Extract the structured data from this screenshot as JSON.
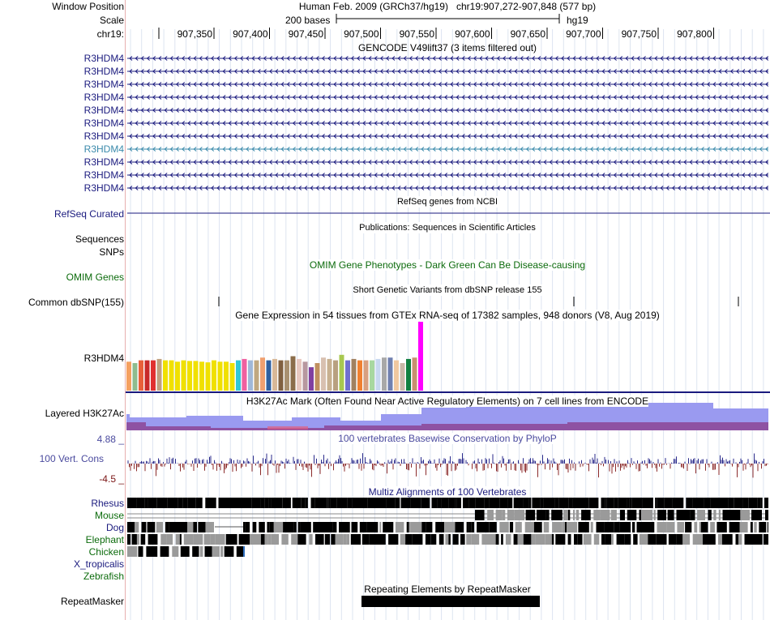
{
  "header": {
    "window_position_label": "Window Position",
    "scale_label": "Scale",
    "chrom_label": "chr19:",
    "assembly_title": "Human Feb. 2009 (GRCh37/hg19)",
    "position": "chr19:907,272-907,848 (577 bp)",
    "scale_text": "200 bases",
    "db": "hg19",
    "ticks": [
      "907,350",
      "907,400",
      "907,450",
      "907,500",
      "907,550",
      "907,600",
      "907,650",
      "907,700",
      "907,750",
      "907,800"
    ]
  },
  "gencode": {
    "title": "GENCODE V49lift37 (3 items filtered out)",
    "items": [
      {
        "name": "R3HDM4",
        "color": "#1a1a7e"
      },
      {
        "name": "R3HDM4",
        "color": "#1a1a7e"
      },
      {
        "name": "R3HDM4",
        "color": "#1a1a7e"
      },
      {
        "name": "R3HDM4",
        "color": "#1a1a7e"
      },
      {
        "name": "R3HDM4",
        "color": "#1a1a7e"
      },
      {
        "name": "R3HDM4",
        "color": "#1a1a7e"
      },
      {
        "name": "R3HDM4",
        "color": "#1a1a7e"
      },
      {
        "name": "R3HDM4",
        "color": "#3a8aab"
      },
      {
        "name": "R3HDM4",
        "color": "#1a1a7e"
      },
      {
        "name": "R3HDM4",
        "color": "#1a1a7e"
      },
      {
        "name": "R3HDM4",
        "color": "#1a1a7e"
      }
    ]
  },
  "refseq": {
    "title": "RefSeq genes from NCBI",
    "label": "RefSeq Curated"
  },
  "publications": {
    "title": "Publications: Sequences in Scientific Articles",
    "label_sequences": "Sequences",
    "label_snps": "SNPs"
  },
  "omim": {
    "title": "OMIM Gene Phenotypes - Dark Green Can Be Disease-causing",
    "label": "OMIM Genes"
  },
  "dbsnp": {
    "title": "Short Genetic Variants from dbSNP release 155",
    "label": "Common dbSNP(155)"
  },
  "gtex": {
    "title": "Gene Expression in 54 tissues from GTEx RNA-seq of 17382 samples, 948 donors (V8, Aug 2019)",
    "label": "R3HDM4",
    "bars": [
      {
        "v": 0.42,
        "c": "#f5a060"
      },
      {
        "v": 0.4,
        "c": "#8fbc8f"
      },
      {
        "v": 0.44,
        "c": "#e85f3a"
      },
      {
        "v": 0.44,
        "c": "#c82a2a"
      },
      {
        "v": 0.44,
        "c": "#e03030"
      },
      {
        "v": 0.46,
        "c": "#c0a080"
      },
      {
        "v": 0.44,
        "c": "#f0e000"
      },
      {
        "v": 0.44,
        "c": "#f0e000"
      },
      {
        "v": 0.42,
        "c": "#f0e000"
      },
      {
        "v": 0.44,
        "c": "#f0e000"
      },
      {
        "v": 0.43,
        "c": "#f0e000"
      },
      {
        "v": 0.43,
        "c": "#f0e000"
      },
      {
        "v": 0.42,
        "c": "#f0e000"
      },
      {
        "v": 0.41,
        "c": "#f0e000"
      },
      {
        "v": 0.44,
        "c": "#f0e000"
      },
      {
        "v": 0.42,
        "c": "#f0e000"
      },
      {
        "v": 0.42,
        "c": "#f0e000"
      },
      {
        "v": 0.4,
        "c": "#f0e000"
      },
      {
        "v": 0.44,
        "c": "#30c8d8"
      },
      {
        "v": 0.46,
        "c": "#f060a0"
      },
      {
        "v": 0.44,
        "c": "#a0b8d8"
      },
      {
        "v": 0.44,
        "c": "#c0a880"
      },
      {
        "v": 0.48,
        "c": "#f0a070"
      },
      {
        "v": 0.44,
        "c": "#3060a0"
      },
      {
        "v": 0.46,
        "c": "#d8b898"
      },
      {
        "v": 0.44,
        "c": "#806040"
      },
      {
        "v": 0.44,
        "c": "#a89070"
      },
      {
        "v": 0.5,
        "c": "#8b6d4a"
      },
      {
        "v": 0.46,
        "c": "#e8c8c0"
      },
      {
        "v": 0.42,
        "c": "#b898a0"
      },
      {
        "v": 0.34,
        "c": "#8040a0"
      },
      {
        "v": 0.4,
        "c": "#c09060"
      },
      {
        "v": 0.48,
        "c": "#d8c0b0"
      },
      {
        "v": 0.46,
        "c": "#c8b090"
      },
      {
        "v": 0.44,
        "c": "#b8a080"
      },
      {
        "v": 0.52,
        "c": "#a8c850"
      },
      {
        "v": 0.44,
        "c": "#7070d0"
      },
      {
        "v": 0.46,
        "c": "#a08060"
      },
      {
        "v": 0.44,
        "c": "#f08030"
      },
      {
        "v": 0.44,
        "c": "#d8a080"
      },
      {
        "v": 0.44,
        "c": "#a8d8a0"
      },
      {
        "v": 0.46,
        "c": "#c8d8f0"
      },
      {
        "v": 0.48,
        "c": "#a8a8a8"
      },
      {
        "v": 0.48,
        "c": "#7080b0"
      },
      {
        "v": 0.44,
        "c": "#f0c8a0"
      },
      {
        "v": 0.4,
        "c": "#c8b8a8"
      },
      {
        "v": 0.46,
        "c": "#108040"
      },
      {
        "v": 0.48,
        "c": "#c89070"
      },
      {
        "v": 1.0,
        "c": "#ff00ff"
      }
    ]
  },
  "h3k27ac": {
    "title": "H3K27Ac Mark (Often Found Near Active Regulatory Elements) on 7 cell lines from ENCODE",
    "label": "Layered H3K27Ac"
  },
  "conservation": {
    "title": "100 vertebrates Basewise Conservation by PhyloP",
    "label": "100 Vert. Cons",
    "max": "4.88 _",
    "min": "-4.5 _"
  },
  "multiz": {
    "title": "Multiz Alignments of 100 Vertebrates",
    "species": [
      {
        "name": "Rhesus",
        "color": "#1a1a7e"
      },
      {
        "name": "Mouse",
        "color": "#0c6b0c"
      },
      {
        "name": "Dog",
        "color": "#1a1a7e"
      },
      {
        "name": "Elephant",
        "color": "#0c6b0c"
      },
      {
        "name": "Chicken",
        "color": "#0c6b0c"
      },
      {
        "name": "X_tropicalis",
        "color": "#1a1a7e"
      },
      {
        "name": "Zebrafish",
        "color": "#0c6b0c"
      }
    ]
  },
  "repeatmasker": {
    "title": "Repeating Elements by RepeatMasker",
    "label": "RepeatMasker"
  }
}
